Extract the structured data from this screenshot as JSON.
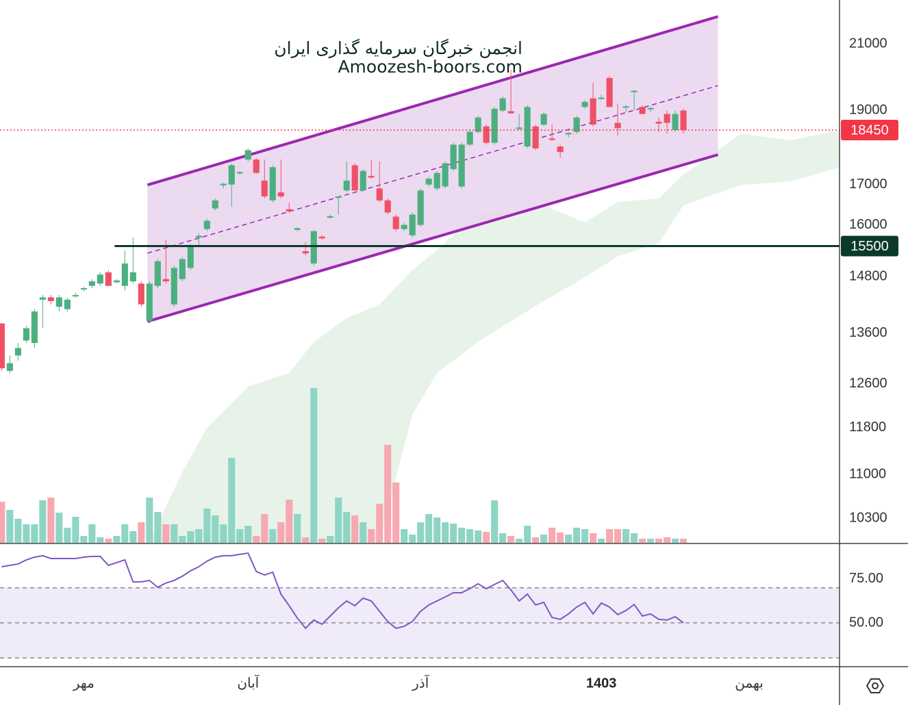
{
  "chart_data": {
    "type": "candlestick",
    "watermark": [
      "انجمن خبرگان سرمایه گذاری ایران",
      "Amoozesh-boors.com"
    ],
    "xlim": [
      -0.2,
      102
    ],
    "xticks": [
      {
        "value": 10,
        "label": "مهر"
      },
      {
        "value": 30,
        "label": "آبان"
      },
      {
        "value": 51,
        "label": "آذر"
      },
      {
        "value": 73,
        "label": "1403",
        "bold": true
      },
      {
        "value": 91,
        "label": "بهمن"
      }
    ],
    "ylim": [
      9926,
      22430
    ],
    "log_scale": true,
    "yticks": [
      10300,
      11000,
      11800,
      12600,
      13600,
      14800,
      16000,
      17000,
      19000,
      21000
    ],
    "open": [
      13800,
      12850,
      13150,
      13450,
      13400,
      14300,
      14350,
      14150,
      14100,
      14380,
      14530,
      14600,
      14650,
      14900,
      14680,
      14600,
      14700,
      14650,
      13850,
      14600,
      14750,
      14200,
      14750,
      15000,
      15700,
      15900,
      16400,
      16980,
      17000,
      17300,
      17650,
      17650,
      17100,
      16600,
      16800,
      16380,
      15880,
      15380,
      15100,
      15720,
      16180,
      16680,
      16850,
      17500,
      16850,
      17220,
      16900,
      16600,
      16200,
      15900,
      15750,
      16000,
      17000,
      16900,
      16950,
      17400,
      16950,
      18050,
      18400,
      18550,
      18100,
      19000,
      18980,
      18480,
      18000,
      18550,
      18600,
      18220,
      18000,
      18330,
      18400,
      19100,
      19350,
      19330,
      19950,
      18650,
      19080,
      19530,
      19100,
      19030,
      18680,
      18900,
      18450,
      19000
    ],
    "high": [
      13800,
      13150,
      13400,
      13750,
      14100,
      14400,
      14400,
      14400,
      14350,
      14450,
      14580,
      14750,
      14900,
      14950,
      14750,
      15400,
      15700,
      14700,
      14700,
      15200,
      15650,
      15050,
      15250,
      15550,
      15800,
      16150,
      16650,
      17050,
      17550,
      17350,
      17950,
      17700,
      17650,
      17500,
      17650,
      16550,
      15950,
      15600,
      15880,
      15760,
      16250,
      16720,
      17600,
      17550,
      17400,
      17650,
      17600,
      16650,
      16250,
      16050,
      16300,
      16900,
      17200,
      17350,
      17600,
      18100,
      18100,
      18450,
      18850,
      18600,
      19100,
      19400,
      20200,
      18900,
      19150,
      18600,
      18950,
      18600,
      18050,
      18400,
      18850,
      19300,
      19800,
      19450,
      20000,
      19200,
      19150,
      19600,
      19150,
      19100,
      18800,
      19000,
      19000,
      19050
    ],
    "low": [
      12850,
      12800,
      13050,
      13400,
      13300,
      13700,
      14200,
      14050,
      14050,
      14350,
      14480,
      14550,
      14600,
      14600,
      14650,
      14500,
      14650,
      14150,
      13800,
      14550,
      14650,
      14150,
      14700,
      14950,
      15500,
      15850,
      16350,
      16900,
      16450,
      17250,
      17600,
      17280,
      16650,
      16550,
      16650,
      16300,
      15850,
      15280,
      15050,
      15650,
      16150,
      16250,
      16800,
      16850,
      16800,
      17150,
      16550,
      16250,
      15850,
      15850,
      15700,
      15950,
      16950,
      16850,
      16900,
      17350,
      16900,
      18000,
      18350,
      18050,
      18050,
      18950,
      18900,
      18450,
      17950,
      17900,
      18550,
      18150,
      17700,
      18250,
      18350,
      19050,
      18550,
      19300,
      19100,
      18300,
      18950,
      19000,
      18900,
      18950,
      18400,
      18350,
      18400,
      18350
    ],
    "close": [
      12900,
      13000,
      13300,
      13700,
      14050,
      14350,
      14270,
      14350,
      14300,
      14400,
      14550,
      14700,
      14850,
      14600,
      14720,
      15100,
      14900,
      14200,
      14650,
      15150,
      14700,
      15000,
      15200,
      15500,
      15740,
      16100,
      16600,
      17020,
      17500,
      17320,
      17900,
      17300,
      16700,
      17450,
      16700,
      16330,
      15920,
      15330,
      15850,
      15680,
      16210,
      16700,
      17100,
      16850,
      17350,
      17180,
      16600,
      16300,
      15900,
      16000,
      16250,
      16850,
      17150,
      17300,
      17550,
      18050,
      18050,
      18400,
      18800,
      18100,
      19050,
      19350,
      18920,
      18520,
      19100,
      17950,
      18900,
      18180,
      17850,
      18370,
      18800,
      19250,
      18600,
      19370,
      19100,
      18500,
      19120,
      19570,
      18900,
      19070,
      18630,
      18650,
      18900,
      18450
    ],
    "up_color": "#4caf7f",
    "down_color": "#ef5066",
    "volume": [
      60,
      48,
      35,
      27,
      27,
      62,
      66,
      44,
      22,
      38,
      10,
      27,
      8,
      6,
      10,
      27,
      17,
      30,
      66,
      45,
      27,
      27,
      10,
      17,
      20,
      50,
      40,
      27,
      124,
      20,
      25,
      10,
      42,
      20,
      30,
      63,
      42,
      8,
      226,
      6,
      10,
      66,
      45,
      40,
      30,
      20,
      57,
      143,
      88,
      20,
      12,
      30,
      42,
      37,
      30,
      28,
      22,
      20,
      18,
      16,
      62,
      14,
      10,
      6,
      25,
      8,
      12,
      22,
      15,
      12,
      22,
      20,
      14,
      6,
      20,
      20,
      20,
      14,
      6,
      6,
      6,
      8,
      6,
      6
    ],
    "volume_up_color": "#8ed5c5",
    "volume_down_color": "#f7a8b0",
    "channel": {
      "x": [
        17.75,
        87.2
      ],
      "upper": [
        16990,
        21880
      ],
      "lower": [
        13840,
        17780
      ],
      "color": "#9c27b0",
      "fill": "#e9d3ef"
    },
    "cloud": {
      "x": [
        18,
        22,
        25,
        30,
        35,
        38,
        42,
        46,
        50,
        53,
        58,
        63,
        66,
        71,
        75,
        80,
        83,
        90,
        96,
        102
      ],
      "upper": [
        9955,
        11040,
        11800,
        12550,
        12810,
        13420,
        13910,
        14200,
        14950,
        15410,
        16310,
        16310,
        16480,
        16060,
        16560,
        16650,
        17260,
        18350,
        18170,
        18450
      ],
      "lower": [
        9926,
        9926,
        9926,
        9926,
        9926,
        9926,
        9926,
        9926,
        12040,
        12810,
        13420,
        13950,
        14270,
        14790,
        15260,
        15570,
        16480,
        16990,
        17080,
        17440
      ],
      "color": "#e7f3e9"
    },
    "price_lines": [
      {
        "value": 18450,
        "color": "#f23645",
        "style": "dotted"
      },
      {
        "value": 15500,
        "color": "#0b3a2c",
        "style": "solid",
        "start": 13.75
      }
    ],
    "rsi": {
      "values": [
        82.0,
        82.8,
        83.6,
        85.9,
        87.5,
        88.3,
        86.7,
        86.7,
        86.7,
        86.7,
        87.5,
        87.9,
        87.9,
        82.8,
        84.4,
        85.9,
        73.4,
        73.4,
        74.2,
        70.3,
        72.7,
        74.2,
        76.6,
        79.7,
        82.0,
        85.2,
        87.5,
        88.3,
        88.3,
        89.1,
        89.8,
        79.3,
        77.3,
        78.9,
        66.4,
        59.8,
        52.7,
        46.9,
        51.6,
        49.2,
        53.9,
        58.6,
        62.5,
        59.8,
        64.1,
        62.5,
        56.6,
        50.8,
        46.9,
        48.0,
        50.8,
        56.6,
        60.2,
        62.5,
        64.8,
        67.2,
        67.2,
        69.5,
        72.3,
        69.5,
        71.9,
        74.2,
        68.8,
        62.5,
        66.4,
        60.2,
        61.7,
        53.1,
        52.0,
        55.1,
        59.0,
        61.7,
        55.1,
        61.3,
        59.0,
        54.7,
        57.0,
        60.5,
        53.9,
        55.1,
        52.0,
        51.6,
        53.5,
        50.0
      ],
      "ylim": [
        25.4,
        94.9
      ],
      "yticks": [
        {
          "value": 75,
          "label": "75.00"
        },
        {
          "value": 50,
          "label": "50.00"
        }
      ],
      "levels": [
        30,
        50,
        70
      ],
      "color": "#7e57c2",
      "band_color": "#efebf8"
    }
  }
}
